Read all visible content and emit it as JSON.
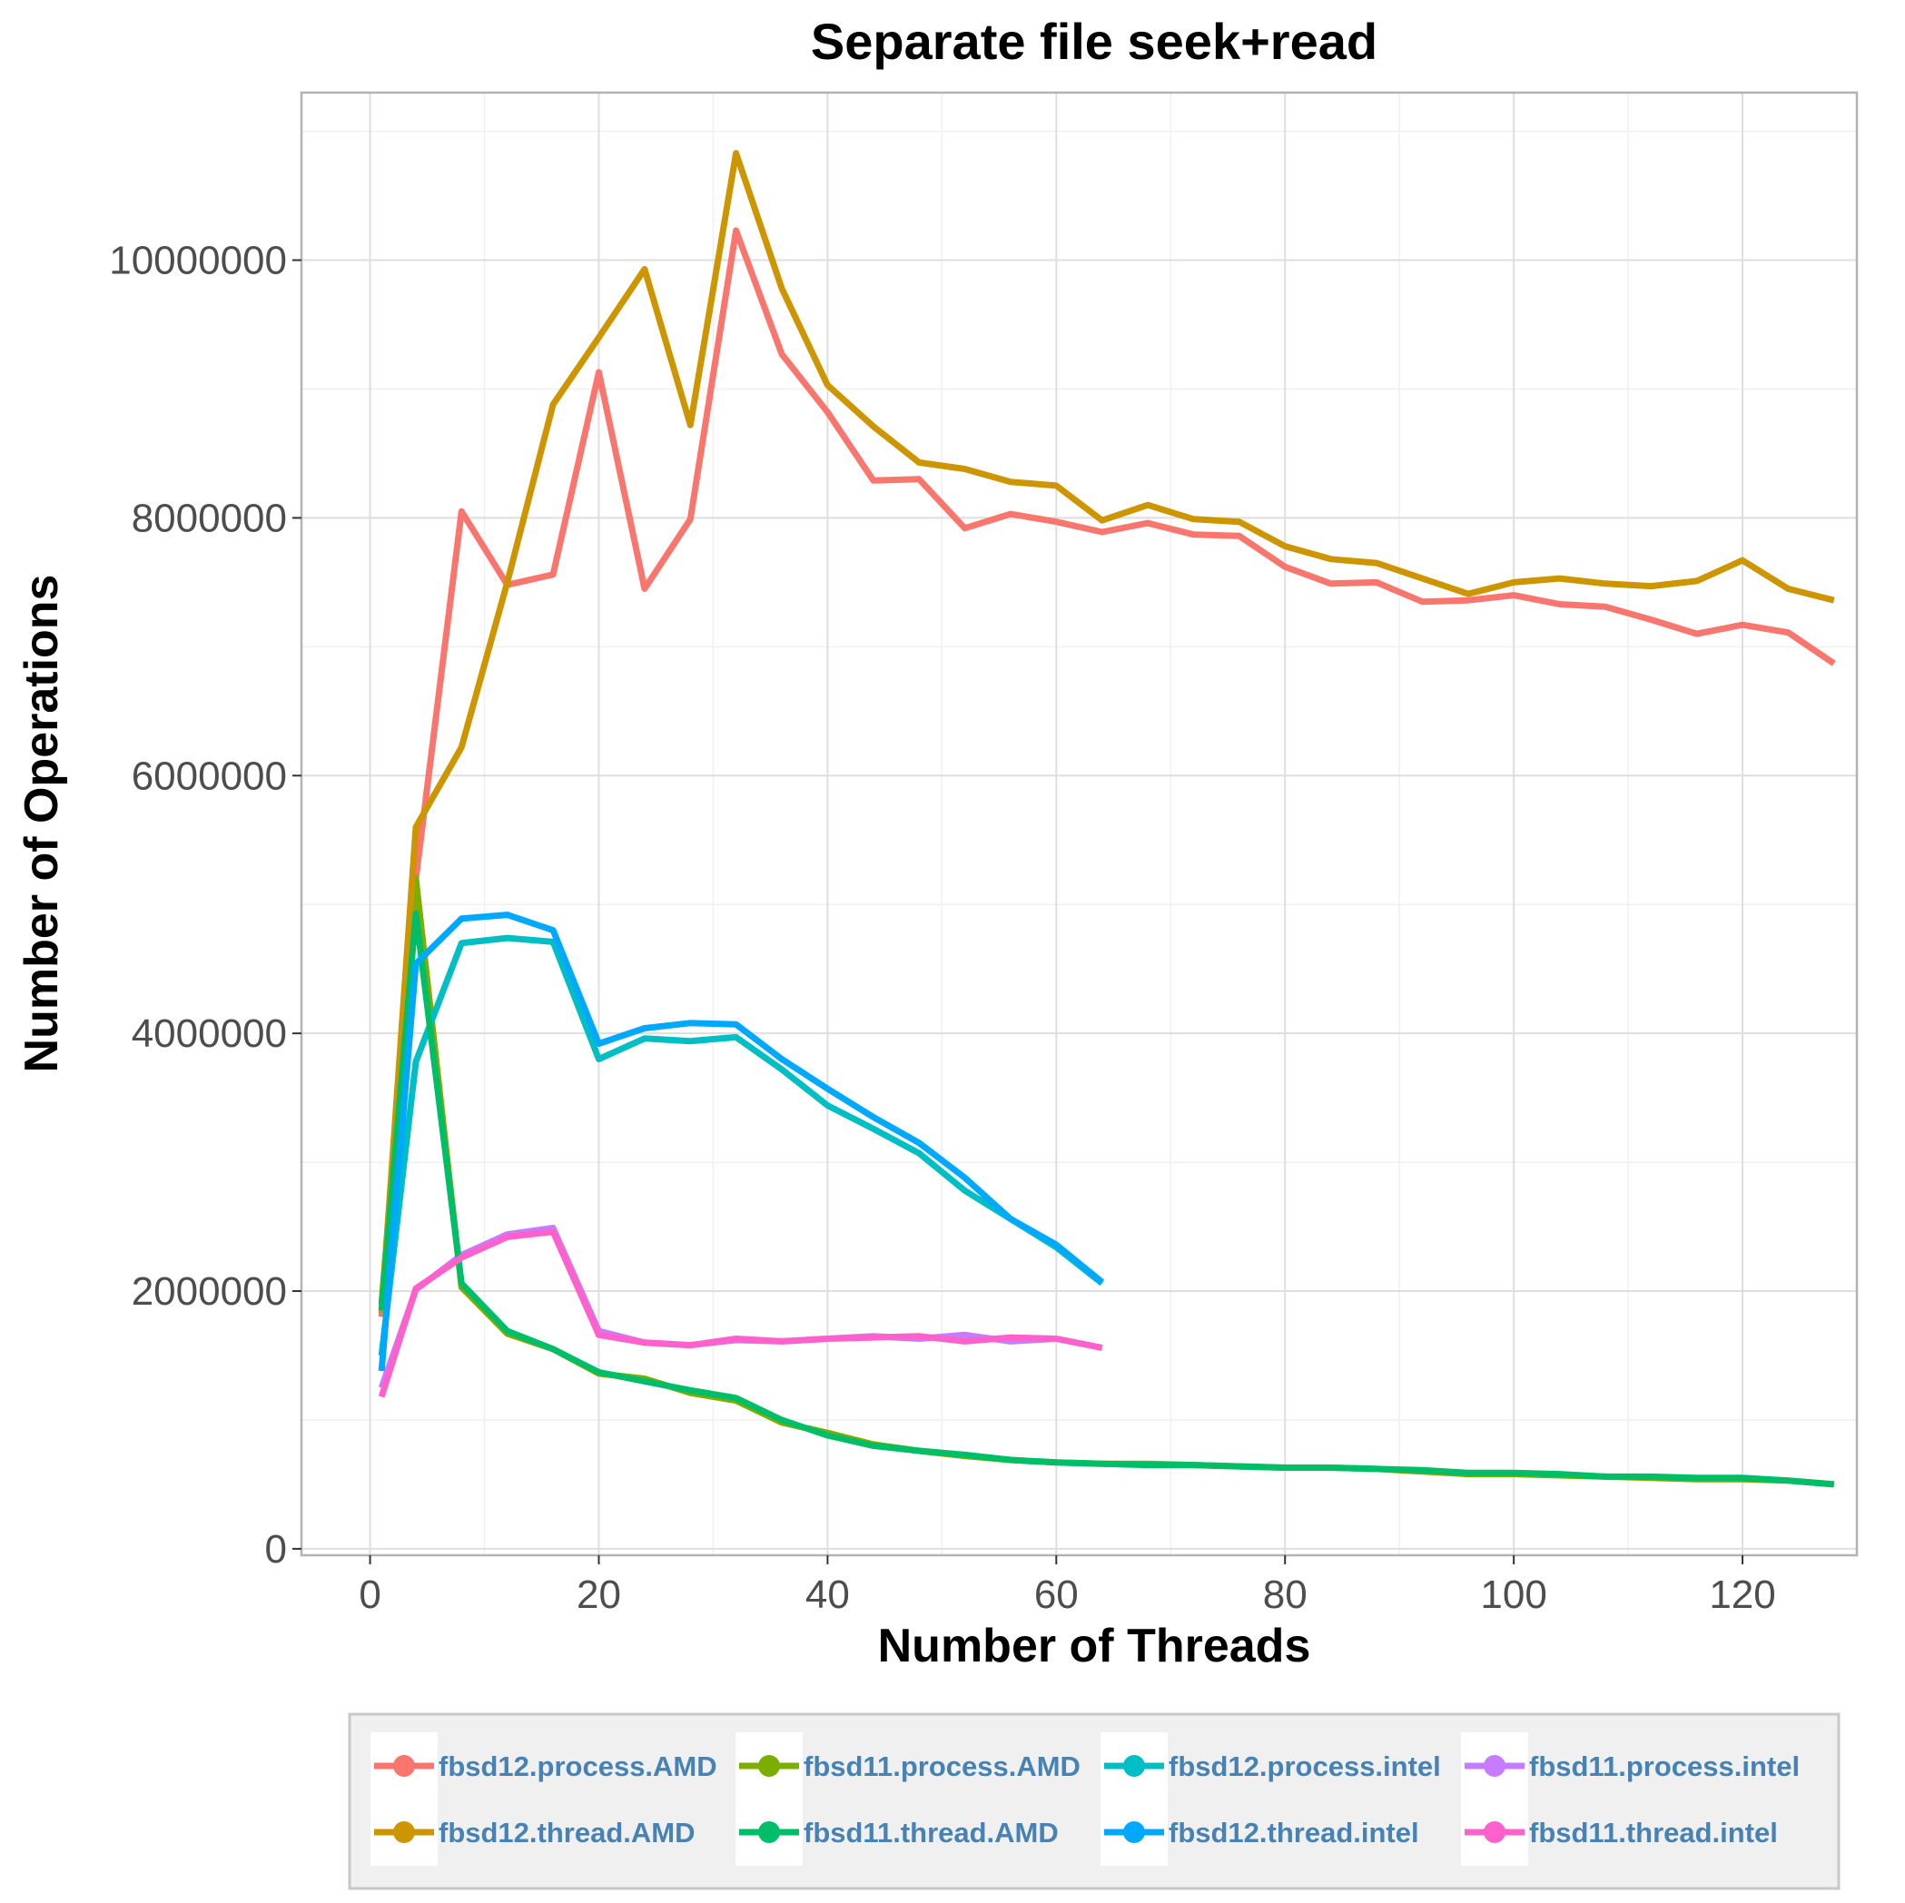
{
  "chart_data": {
    "type": "line",
    "title": "Separate file seek+read",
    "xlabel": "Number of Threads",
    "ylabel": "Number of Operations",
    "xlim": [
      -6,
      130
    ],
    "ylim": [
      -50000,
      11300000
    ],
    "x_ticks": [
      0,
      20,
      40,
      60,
      80,
      100,
      120
    ],
    "x_tick_labels": [
      "0",
      "20",
      "40",
      "60",
      "80",
      "100",
      "120"
    ],
    "y_ticks": [
      0,
      2000000,
      4000000,
      6000000,
      8000000,
      10000000
    ],
    "y_tick_labels": [
      "0",
      "2000000",
      "4000000",
      "6000000",
      "8000000",
      "10000000"
    ],
    "grid": true,
    "legend_position": "bottom",
    "series": [
      {
        "name": "fbsd12.process.AMD",
        "color": "#F8766D",
        "x": [
          1,
          4,
          8,
          12,
          16,
          20,
          24,
          28,
          32,
          36,
          40,
          44,
          48,
          52,
          56,
          60,
          64,
          68,
          72,
          76,
          80,
          84,
          88,
          92,
          96,
          100,
          104,
          108,
          112,
          116,
          120,
          124,
          128
        ],
        "y": [
          1800000,
          5200000,
          8050000,
          7480000,
          7560000,
          9130000,
          7450000,
          7990000,
          10230000,
          9270000,
          8820000,
          8290000,
          8300000,
          7920000,
          8030000,
          7970000,
          7890000,
          7960000,
          7870000,
          7860000,
          7620000,
          7490000,
          7500000,
          7350000,
          7360000,
          7400000,
          7330000,
          7310000,
          7210000,
          7100000,
          7170000,
          7110000,
          6870000
        ]
      },
      {
        "name": "fbsd11.process.AMD",
        "color": "#7CAE00",
        "x": [
          1,
          4,
          8,
          12,
          16,
          20,
          24,
          28,
          32,
          36,
          40,
          44,
          48,
          52,
          56,
          60,
          64,
          68,
          72,
          76,
          80,
          84,
          88,
          92,
          96,
          100,
          104,
          108,
          112,
          116,
          120,
          124,
          128
        ],
        "y": [
          1900000,
          5200000,
          2030000,
          1670000,
          1550000,
          1360000,
          1320000,
          1210000,
          1150000,
          980000,
          900000,
          810000,
          760000,
          720000,
          690000,
          670000,
          660000,
          660000,
          650000,
          640000,
          630000,
          630000,
          620000,
          600000,
          580000,
          580000,
          570000,
          560000,
          550000,
          540000,
          540000,
          530000,
          500000
        ]
      },
      {
        "name": "fbsd12.process.intel",
        "color": "#00BFC4",
        "x": [
          1,
          4,
          8,
          12,
          16,
          20,
          24,
          28,
          32,
          36,
          40,
          44,
          48,
          52,
          56,
          60,
          64
        ],
        "y": [
          1500000,
          3780000,
          4700000,
          4740000,
          4710000,
          3800000,
          3960000,
          3940000,
          3970000,
          3720000,
          3440000,
          3260000,
          3070000,
          2780000,
          2560000,
          2340000,
          2060000
        ]
      },
      {
        "name": "fbsd11.process.intel",
        "color": "#C77CFF",
        "x": [
          1,
          4,
          8,
          12,
          16,
          20,
          24,
          28,
          32,
          36,
          40,
          44,
          48,
          52,
          56,
          60,
          64
        ],
        "y": [
          1250000,
          2010000,
          2280000,
          2440000,
          2490000,
          1690000,
          1600000,
          1580000,
          1620000,
          1610000,
          1630000,
          1650000,
          1630000,
          1660000,
          1610000,
          1630000,
          1560000
        ]
      },
      {
        "name": "fbsd12.thread.AMD",
        "color": "#CD9600",
        "x": [
          1,
          4,
          8,
          12,
          16,
          20,
          24,
          28,
          32,
          36,
          40,
          44,
          48,
          52,
          56,
          60,
          64,
          68,
          72,
          76,
          80,
          84,
          88,
          92,
          96,
          100,
          104,
          108,
          112,
          116,
          120,
          124,
          128
        ],
        "y": [
          1830000,
          5600000,
          6220000,
          7500000,
          8880000,
          9400000,
          9930000,
          8720000,
          10830000,
          9780000,
          9030000,
          8710000,
          8430000,
          8380000,
          8280000,
          8250000,
          7980000,
          8100000,
          7990000,
          7970000,
          7780000,
          7680000,
          7650000,
          7530000,
          7410000,
          7500000,
          7530000,
          7490000,
          7470000,
          7510000,
          7670000,
          7450000,
          7360000
        ]
      },
      {
        "name": "fbsd11.thread.AMD",
        "color": "#00BE67",
        "x": [
          1,
          4,
          8,
          12,
          16,
          20,
          24,
          28,
          32,
          36,
          40,
          44,
          48,
          52,
          56,
          60,
          64,
          68,
          72,
          76,
          80,
          84,
          88,
          92,
          96,
          100,
          104,
          108,
          112,
          116,
          120,
          124,
          128
        ],
        "y": [
          1850000,
          4930000,
          2060000,
          1690000,
          1550000,
          1370000,
          1300000,
          1230000,
          1170000,
          1000000,
          880000,
          800000,
          760000,
          730000,
          690000,
          670000,
          660000,
          650000,
          650000,
          640000,
          630000,
          630000,
          620000,
          610000,
          590000,
          590000,
          580000,
          560000,
          560000,
          550000,
          550000,
          530000,
          500000
        ]
      },
      {
        "name": "fbsd12.thread.intel",
        "color": "#00A9FF",
        "x": [
          1,
          4,
          8,
          12,
          16,
          20,
          24,
          28,
          32,
          36,
          40,
          44,
          48,
          52,
          56,
          60,
          64
        ],
        "y": [
          1380000,
          4540000,
          4890000,
          4920000,
          4800000,
          3920000,
          4040000,
          4080000,
          4070000,
          3800000,
          3570000,
          3350000,
          3150000,
          2880000,
          2560000,
          2360000,
          2070000
        ]
      },
      {
        "name": "fbsd11.thread.intel",
        "color": "#FF61CC",
        "x": [
          1,
          4,
          8,
          12,
          16,
          20,
          24,
          28,
          32,
          36,
          40,
          44,
          48,
          52,
          56,
          60,
          64
        ],
        "y": [
          1180000,
          2020000,
          2260000,
          2420000,
          2460000,
          1660000,
          1600000,
          1580000,
          1630000,
          1610000,
          1630000,
          1640000,
          1650000,
          1610000,
          1640000,
          1630000,
          1560000
        ]
      }
    ]
  },
  "legend": {
    "row1": [
      "fbsd12.process.AMD",
      "fbsd11.process.AMD",
      "fbsd12.process.intel",
      "fbsd11.process.intel"
    ],
    "row2": [
      "fbsd12.thread.AMD",
      "fbsd11.thread.AMD",
      "fbsd12.thread.intel",
      "fbsd11.thread.intel"
    ],
    "row1_colors": [
      "#F8766D",
      "#7CAE00",
      "#00BFC4",
      "#C77CFF"
    ],
    "row2_colors": [
      "#CD9600",
      "#00BE67",
      "#00A9FF",
      "#FF61CC"
    ]
  }
}
